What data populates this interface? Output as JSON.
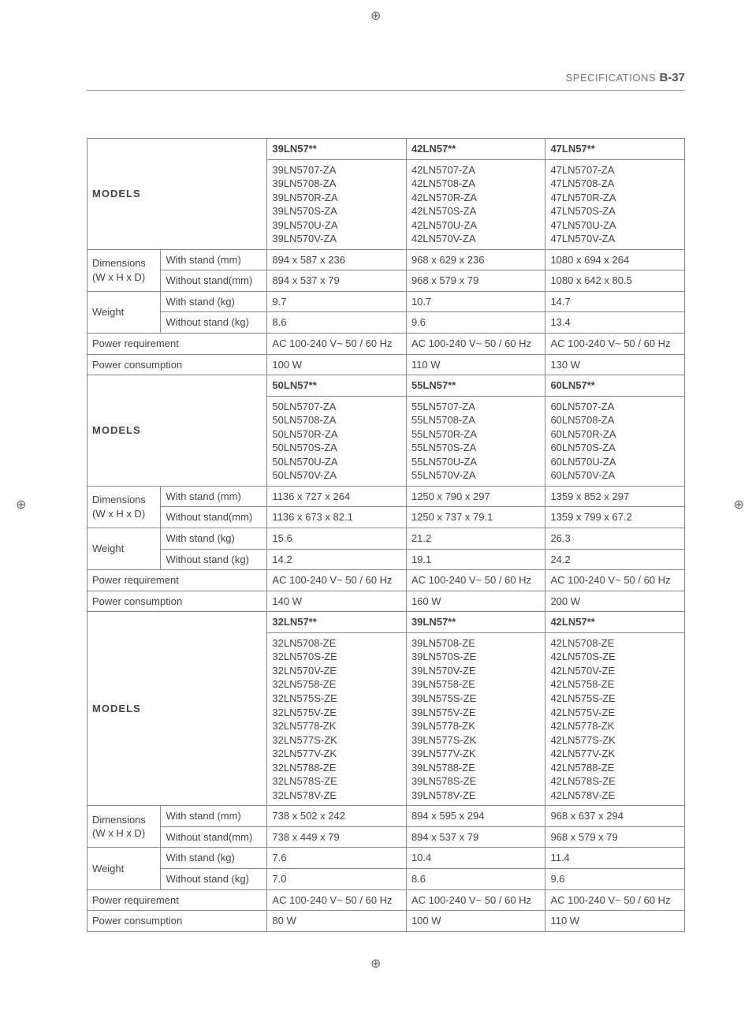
{
  "header": {
    "label": "SPECIFICATIONS",
    "page": "B-37"
  },
  "blocks": [
    {
      "series": [
        "39LN57**",
        "42LN57**",
        "47LN57**"
      ],
      "models": [
        "39LN5707-ZA\n39LN5708-ZA\n39LN570R-ZA\n39LN570S-ZA\n39LN570U-ZA\n39LN570V-ZA",
        "42LN5707-ZA\n42LN5708-ZA\n42LN570R-ZA\n42LN570S-ZA\n42LN570U-ZA\n42LN570V-ZA",
        "47LN5707-ZA\n47LN5708-ZA\n47LN570R-ZA\n47LN570S-ZA\n47LN570U-ZA\n47LN570V-ZA"
      ],
      "dim_with": [
        "894 x 587 x 236",
        "968 x 629 x 236",
        "1080 x 694 x 264"
      ],
      "dim_without": [
        "894 x 537 x 79",
        "968 x 579 x 79",
        "1080 x 642 x 80.5"
      ],
      "wt_with": [
        "9.7",
        "10.7",
        "14.7"
      ],
      "wt_without": [
        "8.6",
        "9.6",
        "13.4"
      ],
      "power_req": [
        "AC 100-240 V~ 50 / 60 Hz",
        "AC 100-240 V~ 50 / 60 Hz",
        "AC 100-240 V~ 50 / 60 Hz"
      ],
      "power_cons": [
        "100 W",
        "110 W",
        "130 W"
      ]
    },
    {
      "series": [
        "50LN57**",
        "55LN57**",
        "60LN57**"
      ],
      "models": [
        "50LN5707-ZA\n50LN5708-ZA\n50LN570R-ZA\n50LN570S-ZA\n50LN570U-ZA\n50LN570V-ZA",
        "55LN5707-ZA\n55LN5708-ZA\n55LN570R-ZA\n55LN570S-ZA\n55LN570U-ZA\n55LN570V-ZA",
        "60LN5707-ZA\n60LN5708-ZA\n60LN570R-ZA\n60LN570S-ZA\n60LN570U-ZA\n60LN570V-ZA"
      ],
      "dim_with": [
        "1136 x 727 x 264",
        "1250 x 790 x 297",
        "1359 x 852 x 297"
      ],
      "dim_without": [
        "1136 x 673 x 82.1",
        "1250 x 737 x 79.1",
        "1359 x 799 x 67.2"
      ],
      "wt_with": [
        "15.6",
        "21.2",
        "26.3"
      ],
      "wt_without": [
        "14.2",
        "19.1",
        "24.2"
      ],
      "power_req": [
        "AC 100-240 V~ 50 / 60 Hz",
        "AC 100-240 V~ 50 / 60 Hz",
        "AC 100-240 V~ 50 / 60 Hz"
      ],
      "power_cons": [
        "140 W",
        "160 W",
        "200 W"
      ]
    },
    {
      "series": [
        "32LN57**",
        "39LN57**",
        "42LN57**"
      ],
      "models": [
        "32LN5708-ZE\n32LN570S-ZE\n32LN570V-ZE\n32LN5758-ZE\n32LN575S-ZE\n32LN575V-ZE\n32LN5778-ZK\n32LN577S-ZK\n32LN577V-ZK\n32LN5788-ZE\n32LN578S-ZE\n32LN578V-ZE",
        "39LN5708-ZE\n39LN570S-ZE\n39LN570V-ZE\n39LN5758-ZE\n39LN575S-ZE\n39LN575V-ZE\n39LN5778-ZK\n39LN577S-ZK\n39LN577V-ZK\n39LN5788-ZE\n39LN578S-ZE\n39LN578V-ZE",
        "42LN5708-ZE\n42LN570S-ZE\n42LN570V-ZE\n42LN5758-ZE\n42LN575S-ZE\n42LN575V-ZE\n42LN5778-ZK\n42LN577S-ZK\n42LN577V-ZK\n42LN5788-ZE\n42LN578S-ZE\n42LN578V-ZE"
      ],
      "dim_with": [
        "738 x 502 x 242",
        "894 x 595 x 294",
        "968 x 637 x 294"
      ],
      "dim_without": [
        "738 x 449 x 79",
        "894 x 537 x 79",
        "968 x 579 x 79"
      ],
      "wt_with": [
        "7.6",
        "10.4",
        "11.4"
      ],
      "wt_without": [
        "7.0",
        "8.6",
        "9.6"
      ],
      "power_req": [
        "AC 100-240 V~ 50 / 60 Hz",
        "AC 100-240 V~ 50 / 60 Hz",
        "AC 100-240 V~ 50 / 60 Hz"
      ],
      "power_cons": [
        "80 W",
        "100 W",
        "110 W"
      ]
    }
  ],
  "labels": {
    "models": "MODELS",
    "dimensions": "Dimensions",
    "wxhxd": "(W x H x D)",
    "with_stand_mm": "With stand (mm)",
    "without_stand_mm": "Without stand(mm)",
    "weight": "Weight",
    "with_stand_kg": "With stand (kg)",
    "without_stand_kg": "Without stand (kg)",
    "power_req": "Power requirement",
    "power_cons": "Power consumption"
  }
}
